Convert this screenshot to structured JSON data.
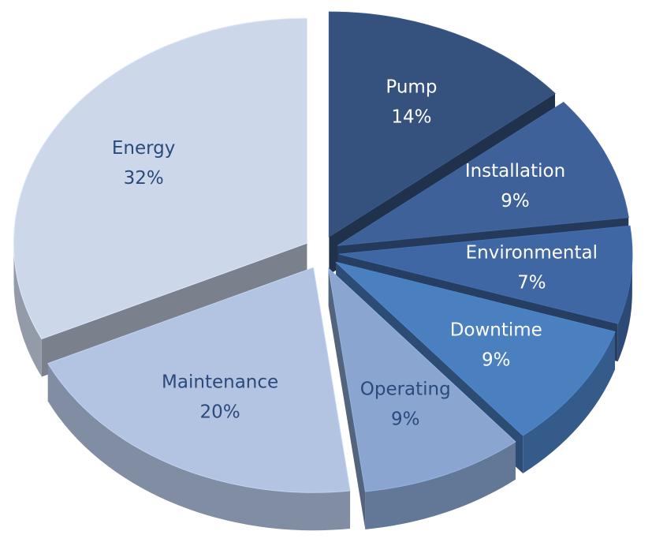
{
  "chart_data": {
    "type": "pie",
    "categories": [
      "Pump",
      "Installation",
      "Environmental",
      "Downtime",
      "Operating",
      "Maintenance",
      "Energy"
    ],
    "values": [
      14,
      9,
      7,
      9,
      9,
      20,
      32
    ],
    "value_labels": [
      "14%",
      "9%",
      "7%",
      "9%",
      "9%",
      "20%",
      "32%"
    ],
    "colors": [
      "#35527f",
      "#3d6198",
      "#3f67a4",
      "#4a7fc0",
      "#8aa6d0",
      "#b3c4e2",
      "#cdd7ea"
    ],
    "label_colors": [
      "#ffffff",
      "#ffffff",
      "#ffffff",
      "#ffffff",
      "#2a4a7c",
      "#2a4a7c",
      "#2a4a7c"
    ]
  }
}
